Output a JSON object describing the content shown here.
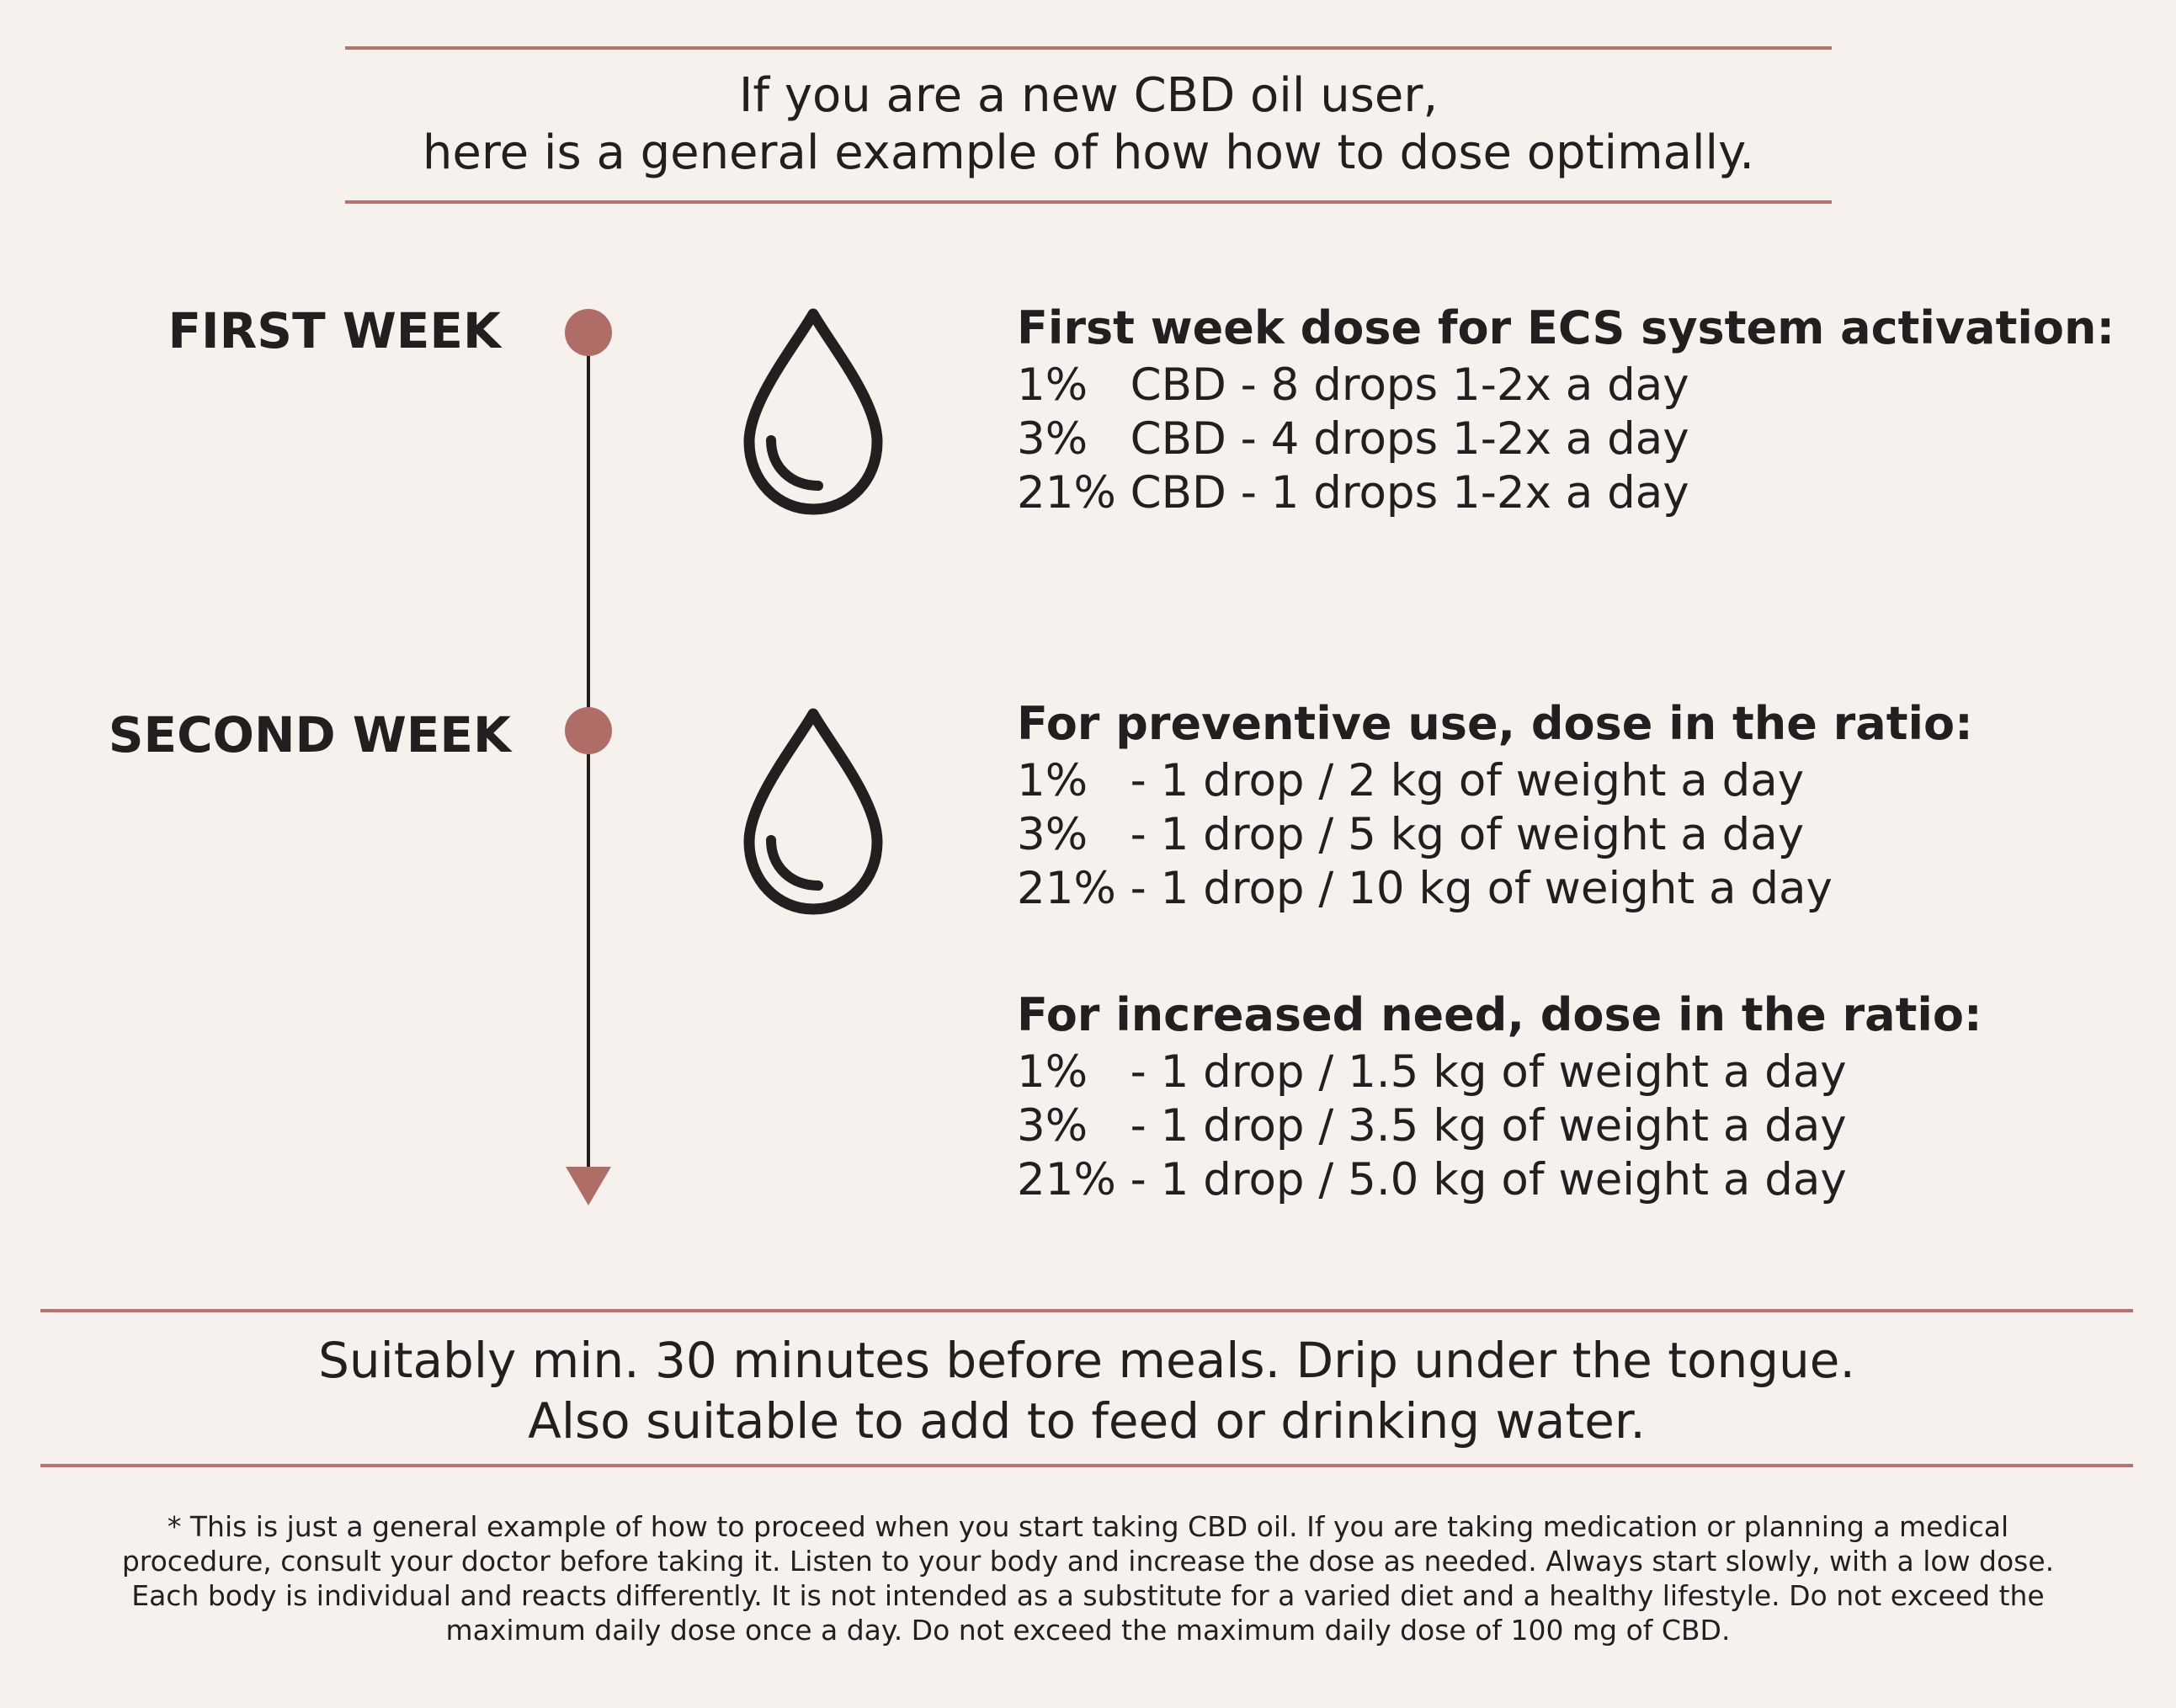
{
  "header": {
    "line1": "If you are a new CBD oil user,",
    "line2": "here is a general example of how how to dose optimally."
  },
  "timeline": {
    "first_week_label": "FIRST WEEK",
    "second_week_label": "SECOND WEEK"
  },
  "icons": {
    "drop": "water-drop-icon"
  },
  "first_week": {
    "title": "First week dose for ECS system activation:",
    "rows": [
      {
        "pct": "1%",
        "text": "CBD - 8 drops 1-2x a day"
      },
      {
        "pct": "3%",
        "text": "CBD - 4 drops 1-2x a day"
      },
      {
        "pct": "21%",
        "text": "CBD - 1 drops 1-2x a day"
      }
    ]
  },
  "preventive": {
    "title": "For preventive use, dose in the ratio:",
    "rows": [
      {
        "pct": "1%",
        "text": "- 1 drop / 2 kg of weight a day"
      },
      {
        "pct": "3%",
        "text": "- 1 drop / 5 kg of weight a day"
      },
      {
        "pct": "21%",
        "text": "- 1 drop / 10 kg of weight a day"
      }
    ]
  },
  "increased": {
    "title": "For increased need, dose in the ratio:",
    "rows": [
      {
        "pct": "1%",
        "text": "- 1 drop / 1.5 kg of weight a day"
      },
      {
        "pct": "3%",
        "text": "- 1 drop / 3.5 kg of weight a day"
      },
      {
        "pct": "21%",
        "text": "- 1 drop / 5.0 kg of weight a day"
      }
    ]
  },
  "usage": {
    "line1": "Suitably min. 30 minutes before meals. Drip under the tongue.",
    "line2": "Also suitable to add to feed or drinking water."
  },
  "disclaimer": "* This is just a general example of how to proceed when you start taking CBD oil. If you are taking medication or planning a medical procedure, consult your doctor before taking it. Listen to your body and increase the dose as needed. Always start slowly, with a low dose. Each body is individual and reacts differently. It is not intended as a substitute for a varied diet and a healthy lifestyle. Do not exceed the maximum daily dose once a day. Do not exceed the maximum daily dose of 100 mg of CBD.",
  "colors": {
    "background": "#f6f1ec",
    "accent": "#b06d68",
    "text": "#231f20"
  }
}
